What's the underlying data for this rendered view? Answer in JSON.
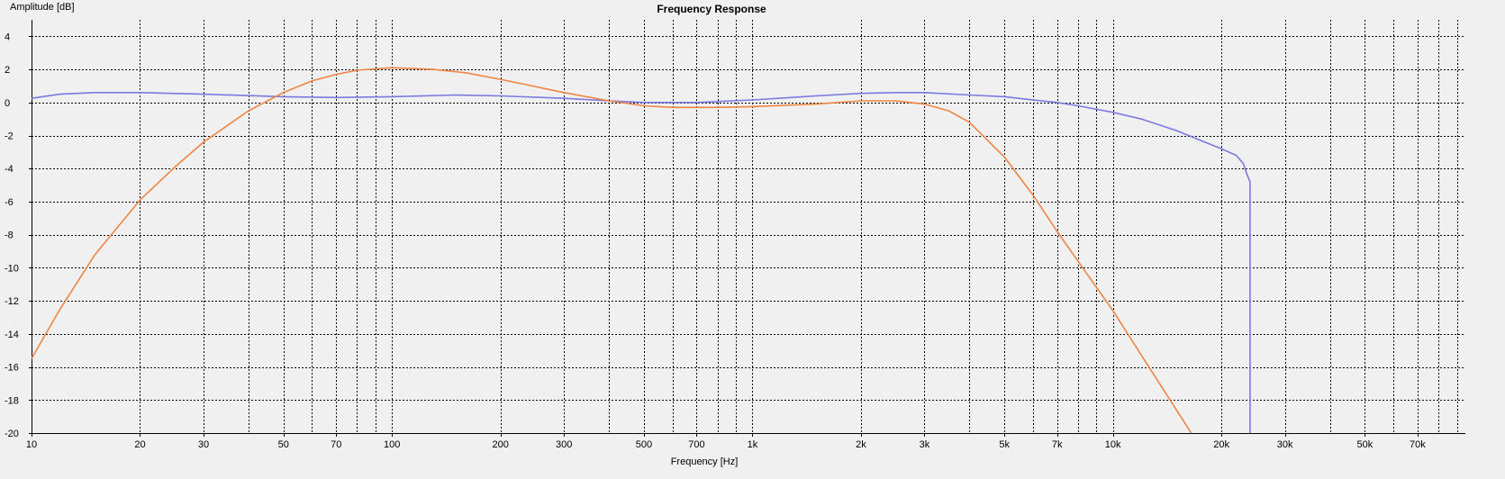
{
  "chart_data": {
    "type": "line",
    "title": "Frequency Response",
    "xlabel": "Frequency [Hz]",
    "ylabel": "Amplitude [dB]",
    "x_scale": "log",
    "xlim": [
      10,
      95000
    ],
    "ylim": [
      -20,
      5
    ],
    "grid": true,
    "x_ticks": [
      {
        "value": 10,
        "label": "10"
      },
      {
        "value": 20,
        "label": "20"
      },
      {
        "value": 30,
        "label": "30"
      },
      {
        "value": 50,
        "label": "50"
      },
      {
        "value": 70,
        "label": "70"
      },
      {
        "value": 100,
        "label": "100"
      },
      {
        "value": 200,
        "label": "200"
      },
      {
        "value": 300,
        "label": "300"
      },
      {
        "value": 500,
        "label": "500"
      },
      {
        "value": 700,
        "label": "700"
      },
      {
        "value": 1000,
        "label": "1k"
      },
      {
        "value": 2000,
        "label": "2k"
      },
      {
        "value": 3000,
        "label": "3k"
      },
      {
        "value": 5000,
        "label": "5k"
      },
      {
        "value": 7000,
        "label": "7k"
      },
      {
        "value": 10000,
        "label": "10k"
      },
      {
        "value": 20000,
        "label": "20k"
      },
      {
        "value": 30000,
        "label": "30k"
      },
      {
        "value": 50000,
        "label": "50k"
      },
      {
        "value": 70000,
        "label": "70k"
      }
    ],
    "x_minor_grid": [
      40,
      60,
      80,
      90,
      400,
      600,
      800,
      900,
      4000,
      6000,
      8000,
      9000,
      40000,
      60000,
      80000,
      90000
    ],
    "y_ticks": [
      {
        "value": 4,
        "label": "4"
      },
      {
        "value": 2,
        "label": "2"
      },
      {
        "value": 0,
        "label": "0"
      },
      {
        "value": -2,
        "label": "-2"
      },
      {
        "value": -4,
        "label": "-4"
      },
      {
        "value": -6,
        "label": "-6"
      },
      {
        "value": -8,
        "label": "-8"
      },
      {
        "value": -10,
        "label": "-10"
      },
      {
        "value": -12,
        "label": "-12"
      },
      {
        "value": -14,
        "label": "-14"
      },
      {
        "value": -16,
        "label": "-16"
      },
      {
        "value": -18,
        "label": "-18"
      },
      {
        "value": -20,
        "label": "-20"
      }
    ],
    "series": [
      {
        "color": "#7b79e0",
        "x": [
          10,
          12,
          15,
          20,
          30,
          50,
          70,
          100,
          150,
          200,
          300,
          400,
          500,
          700,
          1000,
          1500,
          2000,
          2500,
          3000,
          4000,
          5000,
          6000,
          7000,
          8000,
          10000,
          12000,
          15000,
          18000,
          20000,
          22000,
          23000,
          23500,
          24000,
          24000
        ],
        "y": [
          0.25,
          0.5,
          0.6,
          0.6,
          0.5,
          0.35,
          0.3,
          0.35,
          0.45,
          0.4,
          0.25,
          0.1,
          0.0,
          0.0,
          0.15,
          0.4,
          0.55,
          0.6,
          0.6,
          0.45,
          0.35,
          0.15,
          0.0,
          -0.2,
          -0.6,
          -1.0,
          -1.7,
          -2.4,
          -2.8,
          -3.2,
          -3.7,
          -4.3,
          -4.8,
          -20
        ]
      },
      {
        "color": "#ee8544",
        "x": [
          10,
          12,
          15,
          20,
          25,
          30,
          40,
          50,
          60,
          70,
          80,
          100,
          130,
          160,
          200,
          300,
          400,
          500,
          600,
          800,
          1000,
          1500,
          2000,
          2500,
          3000,
          3500,
          4000,
          5000,
          6000,
          7000,
          8000,
          10000,
          12000,
          15000,
          16500
        ],
        "y": [
          -15.5,
          -12.5,
          -9.2,
          -5.9,
          -3.9,
          -2.4,
          -0.5,
          0.6,
          1.3,
          1.7,
          1.95,
          2.1,
          2.0,
          1.8,
          1.4,
          0.6,
          0.1,
          -0.2,
          -0.3,
          -0.3,
          -0.25,
          -0.1,
          0.1,
          0.1,
          -0.1,
          -0.5,
          -1.2,
          -3.3,
          -5.6,
          -7.8,
          -9.6,
          -12.6,
          -15.3,
          -18.6,
          -20
        ]
      }
    ]
  }
}
